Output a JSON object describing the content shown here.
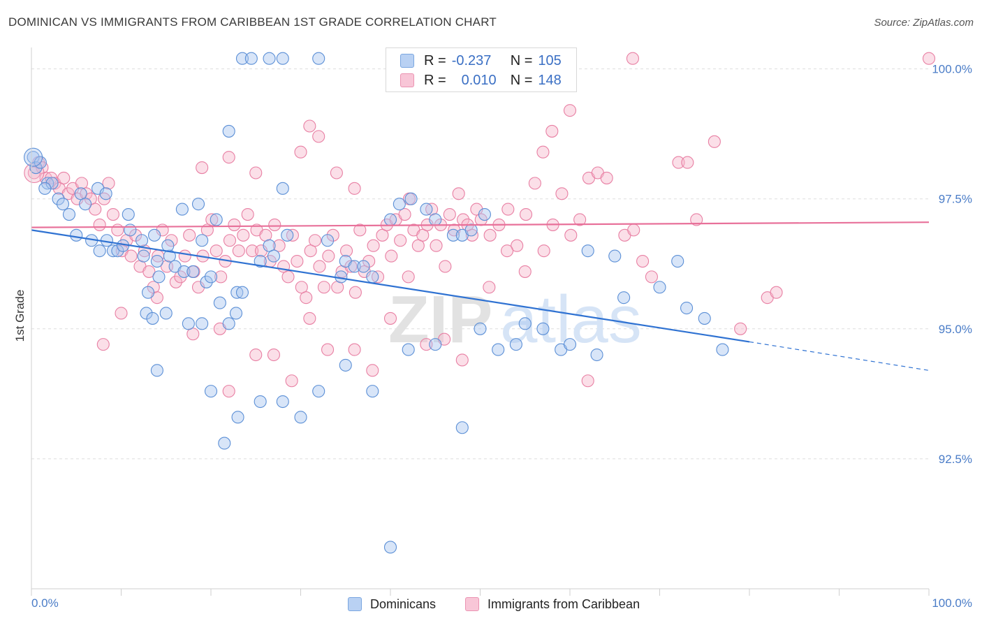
{
  "title": "DOMINICAN VS IMMIGRANTS FROM CARIBBEAN 1ST GRADE CORRELATION CHART",
  "source": "Source: ZipAtlas.com",
  "watermark": {
    "zip": "ZIP",
    "atlas": "atlas"
  },
  "legend": {
    "rows": [
      {
        "r_label": "R =",
        "r_value": "-0.237",
        "n_label": "N =",
        "n_value": "105"
      },
      {
        "r_label": "R =",
        "r_value": "0.010",
        "n_label": "N =",
        "n_value": "148"
      }
    ]
  },
  "bottom_legend": [
    "Dominicans",
    "Immigrants from Caribbean"
  ],
  "colors": {
    "blue_fill": "#a9c6f0",
    "blue_stroke": "#5b8fd6",
    "blue_line": "#2f72d2",
    "pink_fill": "#f6b8cd",
    "pink_stroke": "#e87fa3",
    "pink_line": "#e8719a",
    "grid": "#dddddd",
    "tick_text": "#4a7cc7"
  },
  "chart_data": {
    "type": "scatter",
    "ylabel": "1st Grade",
    "x_tick_labels": [
      "0.0%",
      "100.0%"
    ],
    "y_tick_labels": [
      "100.0%",
      "97.5%",
      "95.0%",
      "92.5%"
    ],
    "y_ticks": [
      100.0,
      97.5,
      95.0,
      92.5
    ],
    "xlim": [
      0,
      100
    ],
    "ylim": [
      90.0,
      100.25
    ],
    "grid": true,
    "series": [
      {
        "name": "Dominicans",
        "r": -0.237,
        "n": 105,
        "trend": {
          "x0": 0,
          "y0": 96.9,
          "x1": 80,
          "y1": 94.75,
          "dashed_to_x": 100,
          "dashed_to_y": 94.2
        },
        "points": [
          [
            0.2,
            98.3
          ],
          [
            0.5,
            98.1
          ],
          [
            1,
            98.2
          ],
          [
            1.8,
            97.8
          ],
          [
            2.3,
            97.8
          ],
          [
            3,
            97.5
          ],
          [
            1.5,
            97.7
          ],
          [
            4.2,
            97.2
          ],
          [
            5.5,
            97.6
          ],
          [
            6,
            97.4
          ],
          [
            7.4,
            97.7
          ],
          [
            8.3,
            97.6
          ],
          [
            10.8,
            97.2
          ],
          [
            3.5,
            97.4
          ],
          [
            11,
            96.9
          ],
          [
            12.3,
            96.7
          ],
          [
            13.7,
            96.8
          ],
          [
            15.4,
            96.4
          ],
          [
            16.8,
            97.3
          ],
          [
            18.6,
            97.4
          ],
          [
            19,
            96.7
          ],
          [
            20.6,
            97.1
          ],
          [
            5,
            96.8
          ],
          [
            6.7,
            96.7
          ],
          [
            7.6,
            96.5
          ],
          [
            8.4,
            96.7
          ],
          [
            9.1,
            96.5
          ],
          [
            9.6,
            96.5
          ],
          [
            10.2,
            96.6
          ],
          [
            12.5,
            96.4
          ],
          [
            14,
            96.3
          ],
          [
            15.2,
            96.6
          ],
          [
            16,
            96.2
          ],
          [
            17,
            96.1
          ],
          [
            18,
            96.1
          ],
          [
            19.5,
            95.9
          ],
          [
            20,
            96.0
          ],
          [
            14.2,
            96.0
          ],
          [
            13,
            95.7
          ],
          [
            12.8,
            95.3
          ],
          [
            13.5,
            95.2
          ],
          [
            15,
            95.3
          ],
          [
            17.5,
            95.1
          ],
          [
            19,
            95.1
          ],
          [
            21,
            95.5
          ],
          [
            22.8,
            95.3
          ],
          [
            22,
            95.1
          ],
          [
            22.9,
            95.7
          ],
          [
            23.5,
            95.7
          ],
          [
            25.5,
            96.3
          ],
          [
            26.5,
            96.6
          ],
          [
            27,
            96.4
          ],
          [
            28.5,
            96.8
          ],
          [
            33,
            96.7
          ],
          [
            34.5,
            96.0
          ],
          [
            35,
            96.3
          ],
          [
            36,
            96.2
          ],
          [
            37,
            96.2
          ],
          [
            38,
            96.0
          ],
          [
            40,
            97.1
          ],
          [
            41,
            97.4
          ],
          [
            42.3,
            97.5
          ],
          [
            44,
            97.3
          ],
          [
            45,
            97.1
          ],
          [
            47,
            96.8
          ],
          [
            48,
            96.8
          ],
          [
            49,
            96.9
          ],
          [
            50.5,
            97.2
          ],
          [
            14,
            94.2
          ],
          [
            20,
            93.8
          ],
          [
            21.5,
            92.8
          ],
          [
            23,
            93.3
          ],
          [
            25.5,
            93.6
          ],
          [
            28,
            93.6
          ],
          [
            30,
            93.3
          ],
          [
            32,
            93.8
          ],
          [
            35,
            94.3
          ],
          [
            38,
            93.8
          ],
          [
            42,
            94.6
          ],
          [
            45,
            94.7
          ],
          [
            48,
            93.1
          ],
          [
            50,
            95.0
          ],
          [
            52,
            94.6
          ],
          [
            54,
            94.7
          ],
          [
            55,
            95.1
          ],
          [
            57,
            95.0
          ],
          [
            59,
            94.6
          ],
          [
            60,
            94.7
          ],
          [
            62,
            96.5
          ],
          [
            63,
            94.5
          ],
          [
            65,
            96.4
          ],
          [
            66,
            95.6
          ],
          [
            70,
            95.8
          ],
          [
            72,
            96.3
          ],
          [
            73,
            95.4
          ],
          [
            75,
            95.2
          ],
          [
            77,
            94.6
          ],
          [
            28,
            97.7
          ],
          [
            22,
            98.8
          ],
          [
            23.5,
            100.2
          ],
          [
            24.5,
            100.2
          ],
          [
            26.5,
            100.2
          ],
          [
            28,
            100.2
          ],
          [
            32,
            100.2
          ],
          [
            40,
            90.8
          ],
          [
            56,
            100.2
          ]
        ]
      },
      {
        "name": "Immigrants from Caribbean",
        "r": 0.01,
        "n": 148,
        "trend": {
          "x0": 0,
          "y0": 96.95,
          "x1": 100,
          "y1": 97.05
        },
        "points": [
          [
            0.3,
            98.0
          ],
          [
            0.8,
            98.2
          ],
          [
            1.2,
            98.1
          ],
          [
            1.6,
            97.9
          ],
          [
            2.2,
            97.9
          ],
          [
            2.6,
            97.8
          ],
          [
            3.1,
            97.7
          ],
          [
            3.6,
            97.9
          ],
          [
            4.1,
            97.6
          ],
          [
            4.6,
            97.7
          ],
          [
            5.1,
            97.5
          ],
          [
            5.6,
            97.8
          ],
          [
            6.1,
            97.6
          ],
          [
            6.6,
            97.5
          ],
          [
            7.1,
            97.3
          ],
          [
            7.6,
            97.0
          ],
          [
            8.1,
            97.5
          ],
          [
            8.6,
            97.8
          ],
          [
            9.1,
            97.2
          ],
          [
            9.6,
            96.9
          ],
          [
            10.1,
            96.5
          ],
          [
            10.6,
            96.7
          ],
          [
            11.1,
            96.4
          ],
          [
            11.6,
            96.8
          ],
          [
            12.1,
            96.2
          ],
          [
            12.6,
            96.5
          ],
          [
            13.1,
            96.1
          ],
          [
            13.6,
            95.8
          ],
          [
            14.1,
            96.4
          ],
          [
            14.6,
            96.9
          ],
          [
            15.1,
            96.2
          ],
          [
            15.6,
            96.7
          ],
          [
            16.1,
            95.9
          ],
          [
            16.6,
            96.0
          ],
          [
            17.1,
            96.4
          ],
          [
            17.6,
            96.8
          ],
          [
            18.1,
            96.1
          ],
          [
            18.6,
            95.8
          ],
          [
            19.1,
            96.4
          ],
          [
            19.6,
            96.9
          ],
          [
            20.1,
            97.1
          ],
          [
            20.6,
            96.5
          ],
          [
            21.1,
            96.0
          ],
          [
            21.6,
            96.3
          ],
          [
            22.1,
            96.7
          ],
          [
            22.6,
            97.0
          ],
          [
            23.1,
            96.5
          ],
          [
            23.6,
            96.8
          ],
          [
            24.1,
            97.2
          ],
          [
            24.6,
            96.5
          ],
          [
            25.1,
            96.9
          ],
          [
            25.6,
            96.5
          ],
          [
            26.1,
            96.8
          ],
          [
            26.6,
            96.3
          ],
          [
            27.1,
            97.0
          ],
          [
            27.6,
            96.6
          ],
          [
            28.1,
            96.2
          ],
          [
            28.6,
            96.0
          ],
          [
            29.1,
            96.8
          ],
          [
            29.6,
            96.3
          ],
          [
            30.1,
            95.8
          ],
          [
            30.6,
            95.6
          ],
          [
            31.1,
            96.5
          ],
          [
            31.6,
            96.7
          ],
          [
            32.1,
            96.2
          ],
          [
            32.6,
            95.8
          ],
          [
            33.1,
            96.4
          ],
          [
            33.6,
            96.8
          ],
          [
            34.1,
            95.8
          ],
          [
            34.6,
            96.1
          ],
          [
            35.1,
            96.5
          ],
          [
            35.6,
            96.2
          ],
          [
            36.1,
            95.7
          ],
          [
            36.6,
            96.9
          ],
          [
            37.1,
            96.1
          ],
          [
            37.6,
            96.3
          ],
          [
            38.1,
            96.6
          ],
          [
            38.6,
            96.0
          ],
          [
            39.1,
            96.8
          ],
          [
            39.6,
            97.0
          ],
          [
            40.1,
            96.4
          ],
          [
            40.6,
            97.1
          ],
          [
            41.1,
            96.7
          ],
          [
            41.6,
            97.2
          ],
          [
            42.1,
            97.5
          ],
          [
            42.6,
            96.9
          ],
          [
            43.1,
            96.6
          ],
          [
            43.6,
            96.8
          ],
          [
            44.1,
            97.0
          ],
          [
            44.6,
            97.3
          ],
          [
            45.1,
            96.6
          ],
          [
            45.6,
            97.0
          ],
          [
            46.1,
            96.2
          ],
          [
            46.6,
            97.2
          ],
          [
            47.1,
            96.9
          ],
          [
            47.6,
            97.6
          ],
          [
            48.1,
            97.1
          ],
          [
            48.6,
            97.0
          ],
          [
            49.1,
            96.8
          ],
          [
            49.6,
            97.3
          ],
          [
            50.1,
            97.1
          ],
          [
            51.1,
            96.8
          ],
          [
            52.1,
            97.0
          ],
          [
            53.1,
            97.3
          ],
          [
            54.1,
            96.6
          ],
          [
            55.1,
            97.2
          ],
          [
            56.1,
            97.8
          ],
          [
            57.1,
            96.5
          ],
          [
            58.1,
            97.0
          ],
          [
            59.1,
            97.6
          ],
          [
            60.1,
            96.8
          ],
          [
            61.1,
            97.1
          ],
          [
            62.1,
            97.9
          ],
          [
            63.1,
            98.0
          ],
          [
            64.1,
            97.9
          ],
          [
            66.1,
            96.8
          ],
          [
            67.1,
            96.9
          ],
          [
            68.1,
            96.3
          ],
          [
            69.1,
            96.0
          ],
          [
            72.1,
            98.2
          ],
          [
            73.1,
            98.2
          ],
          [
            74.1,
            97.1
          ],
          [
            76.1,
            98.6
          ],
          [
            8,
            94.7
          ],
          [
            10,
            95.3
          ],
          [
            14,
            95.6
          ],
          [
            18,
            94.9
          ],
          [
            21,
            95.0
          ],
          [
            22,
            93.8
          ],
          [
            25,
            94.5
          ],
          [
            27,
            94.5
          ],
          [
            29,
            94.0
          ],
          [
            31,
            95.2
          ],
          [
            33,
            94.6
          ],
          [
            36,
            94.6
          ],
          [
            38,
            94.2
          ],
          [
            40,
            95.2
          ],
          [
            42,
            96.0
          ],
          [
            44,
            94.7
          ],
          [
            46,
            94.8
          ],
          [
            48,
            94.4
          ],
          [
            51,
            95.8
          ],
          [
            53,
            96.5
          ],
          [
            55,
            96.1
          ],
          [
            57,
            98.4
          ],
          [
            58,
            98.8
          ],
          [
            60,
            99.2
          ],
          [
            62,
            94.0
          ],
          [
            67,
            100.2
          ],
          [
            79,
            95.0
          ],
          [
            82,
            95.6
          ],
          [
            83,
            95.7
          ],
          [
            100,
            100.2
          ],
          [
            19,
            98.1
          ],
          [
            22,
            98.3
          ],
          [
            25,
            98.0
          ],
          [
            30,
            98.4
          ],
          [
            31,
            98.9
          ],
          [
            32,
            98.7
          ],
          [
            34,
            98.0
          ],
          [
            36,
            97.7
          ]
        ]
      }
    ]
  }
}
